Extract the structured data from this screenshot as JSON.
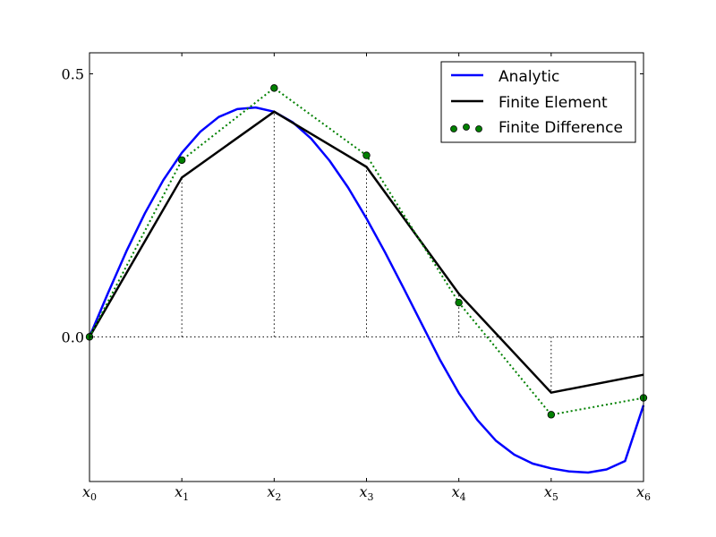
{
  "chart_data": {
    "type": "line",
    "title": "",
    "xlabel": "",
    "ylabel": "",
    "xlim": [
      0,
      6
    ],
    "ylim": [
      -0.275,
      0.54
    ],
    "grid": false,
    "legend_position": "top-right",
    "x_tick_labels": [
      {
        "base": "x",
        "sub": "0"
      },
      {
        "base": "x",
        "sub": "1"
      },
      {
        "base": "x",
        "sub": "2"
      },
      {
        "base": "x",
        "sub": "3"
      },
      {
        "base": "x",
        "sub": "4"
      },
      {
        "base": "x",
        "sub": "5"
      },
      {
        "base": "x",
        "sub": "6"
      }
    ],
    "y_ticks": [
      0.0,
      0.5
    ],
    "y_tick_labels": [
      "0.0",
      "0.5"
    ],
    "series": [
      {
        "name": "Analytic",
        "style": "solid",
        "color": "#0000ff",
        "x": [
          0,
          0.2,
          0.4,
          0.6,
          0.8,
          1.0,
          1.2,
          1.4,
          1.6,
          1.8,
          2.0,
          2.2,
          2.4,
          2.6,
          2.8,
          3.0,
          3.2,
          3.4,
          3.6,
          3.8,
          4.0,
          4.2,
          4.4,
          4.6,
          4.8,
          5.0,
          5.2,
          5.4,
          5.6,
          5.8,
          6.0
        ],
        "y": [
          0.0,
          0.083,
          0.163,
          0.235,
          0.298,
          0.35,
          0.39,
          0.418,
          0.433,
          0.436,
          0.428,
          0.408,
          0.377,
          0.335,
          0.284,
          0.225,
          0.161,
          0.093,
          0.024,
          -0.045,
          -0.107,
          -0.158,
          -0.197,
          -0.224,
          -0.241,
          -0.25,
          -0.256,
          -0.258,
          -0.252,
          -0.236,
          -0.13
        ]
      },
      {
        "name": "Finite Element",
        "style": "solid",
        "color": "#000000",
        "x": [
          0,
          1,
          2,
          3,
          4,
          5,
          6
        ],
        "y": [
          0.0,
          0.303,
          0.428,
          0.323,
          0.082,
          -0.106,
          -0.072
        ]
      },
      {
        "name": "Finite Difference",
        "style": "dotted-markers",
        "color": "#008000",
        "x": [
          0,
          1,
          2,
          3,
          4,
          5,
          6
        ],
        "y": [
          0.0,
          0.336,
          0.473,
          0.345,
          0.065,
          -0.148,
          -0.116
        ]
      }
    ]
  },
  "legend": {
    "items": [
      {
        "label": "Analytic"
      },
      {
        "label": "Finite Element"
      },
      {
        "label": "Finite Difference"
      }
    ]
  }
}
